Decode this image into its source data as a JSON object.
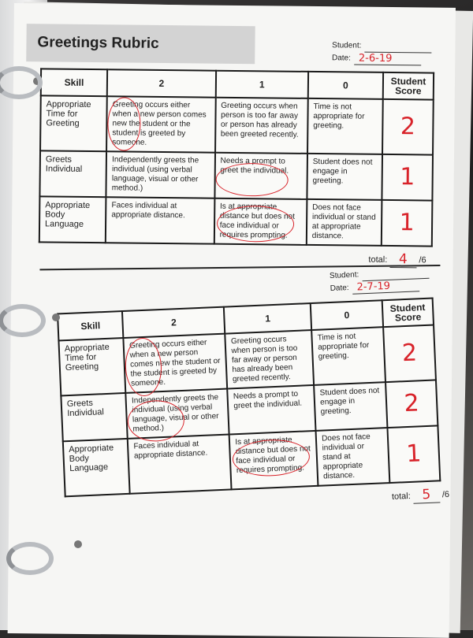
{
  "title": "Greetings Rubric",
  "labels": {
    "student": "Student:",
    "date": "Date:",
    "total": "total:",
    "total_max": "/6"
  },
  "columns": [
    "Skill",
    "2",
    "1",
    "0",
    "Student Score"
  ],
  "rows": [
    {
      "skill": "Appropriate Time for Greeting",
      "c2": "Greeting occurs either when a new person comes new the student or the student is greeted by someone.",
      "c1": "Greeting occurs when person is too far away or person has already been greeted recently.",
      "c0": "Time is not appropriate for greeting."
    },
    {
      "skill": "Greets Individual",
      "c2": "Independently greets the individual (using verbal language, visual or other method.)",
      "c1": "Needs a prompt to greet the individual.",
      "c0": "Student does not engage in greeting."
    },
    {
      "skill": "Appropriate Body Language",
      "c2": "Faces individual at appropriate distance.",
      "c1": "Is at appropriate distance but does not face individual or requires prompting.",
      "c0": "Does not face individual or stand at appropriate distance."
    }
  ],
  "rubric1": {
    "date": "2-6-19",
    "scores": [
      "2",
      "1",
      "1"
    ],
    "total": "4"
  },
  "rubric2": {
    "date": "2-7-19",
    "scores": [
      "2",
      "2",
      "1"
    ],
    "total": "5"
  },
  "colors": {
    "ink": "#d8232a",
    "header": "#d3d3d3"
  }
}
